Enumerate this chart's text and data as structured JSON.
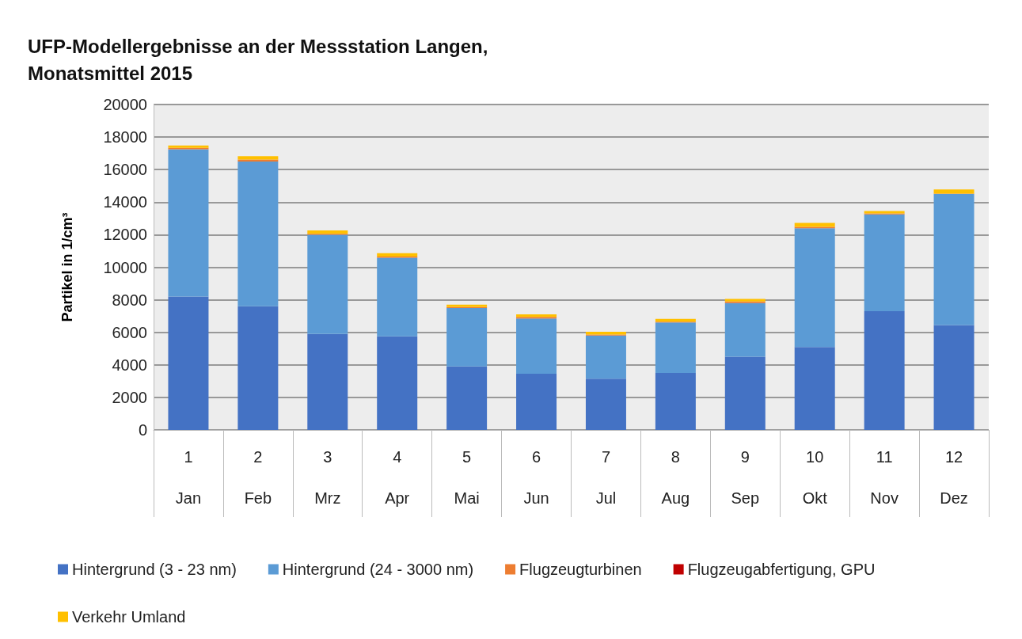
{
  "chart_data": {
    "type": "bar",
    "title": "UFP-Modellergebnisse an der Messstation Langen,\nMonatsmittel 2015",
    "ylabel": "Partikel in 1/cm³",
    "categories": [
      "1\nJan",
      "2\nFeb",
      "3\nMrz",
      "4\nApr",
      "5\nMai",
      "6\nJun",
      "7\nJul",
      "8\nAug",
      "9\nSep",
      "10\nOkt",
      "11\nNov",
      "12\nDez"
    ],
    "stacked": true,
    "ylim": [
      0,
      20000
    ],
    "yticks": [
      0,
      2000,
      4000,
      6000,
      8000,
      10000,
      12000,
      14000,
      16000,
      18000,
      20000
    ],
    "grid": "y",
    "legend": "bottom",
    "series": [
      {
        "name": "Hintergrund (3 - 23 nm)",
        "color": "#4472c4",
        "values": [
          8200,
          7600,
          5900,
          5750,
          3900,
          3450,
          3150,
          3500,
          4500,
          5100,
          7300,
          6450
        ]
      },
      {
        "name": "Hintergrund (24 - 3000 nm)",
        "color": "#5b9bd5",
        "values": [
          9050,
          8900,
          6100,
          4830,
          3600,
          3400,
          2650,
          3100,
          3300,
          7300,
          5950,
          8050
        ]
      },
      {
        "name": "Flugzeugturbinen",
        "color": "#ed7d31",
        "values": [
          80,
          120,
          60,
          80,
          50,
          100,
          60,
          60,
          100,
          80,
          60,
          30
        ]
      },
      {
        "name": "Flugzeugabfertigung, GPU",
        "color": "#c00000",
        "values": [
          null,
          null,
          null,
          null,
          null,
          null,
          null,
          null,
          null,
          null,
          null,
          null
        ]
      },
      {
        "name": "Verkehr Umland",
        "color": "#ffc000",
        "values": [
          150,
          200,
          200,
          200,
          150,
          150,
          180,
          170,
          150,
          250,
          150,
          250
        ]
      }
    ]
  }
}
